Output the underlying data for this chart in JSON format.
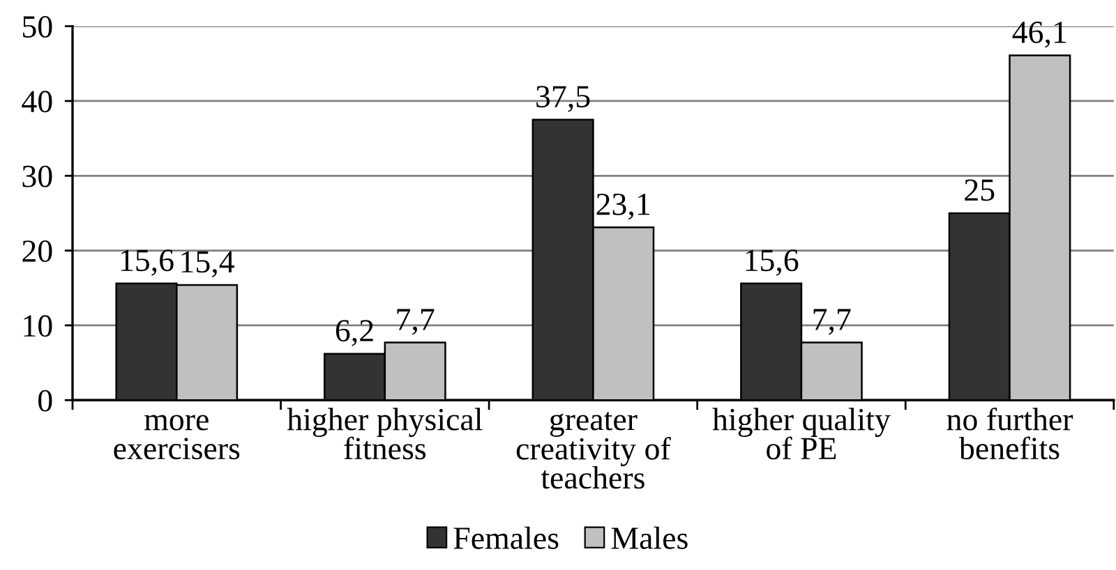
{
  "chart_data": {
    "type": "bar",
    "categories": [
      "more\nexercisers",
      "higher physical\nfitness",
      "greater\ncreativity of\nteachers",
      "higher quality\nof PE",
      "no further\nbenefits"
    ],
    "series": [
      {
        "name": "Females",
        "color": "#333333",
        "values": [
          15.6,
          6.2,
          37.5,
          15.6,
          25
        ],
        "value_labels": [
          "15,6",
          "6,2",
          "37,5",
          "15,6",
          "25"
        ]
      },
      {
        "name": "Males",
        "color": "#c0c0c0",
        "values": [
          15.4,
          7.7,
          23.1,
          7.7,
          46.1
        ],
        "value_labels": [
          "15,4",
          "7,7",
          "23,1",
          "7,7",
          "46,1"
        ]
      }
    ],
    "ylim": [
      0,
      50
    ],
    "yticks": [
      0,
      10,
      20,
      30,
      40,
      50
    ],
    "grid": "y",
    "legend": "bottom"
  }
}
